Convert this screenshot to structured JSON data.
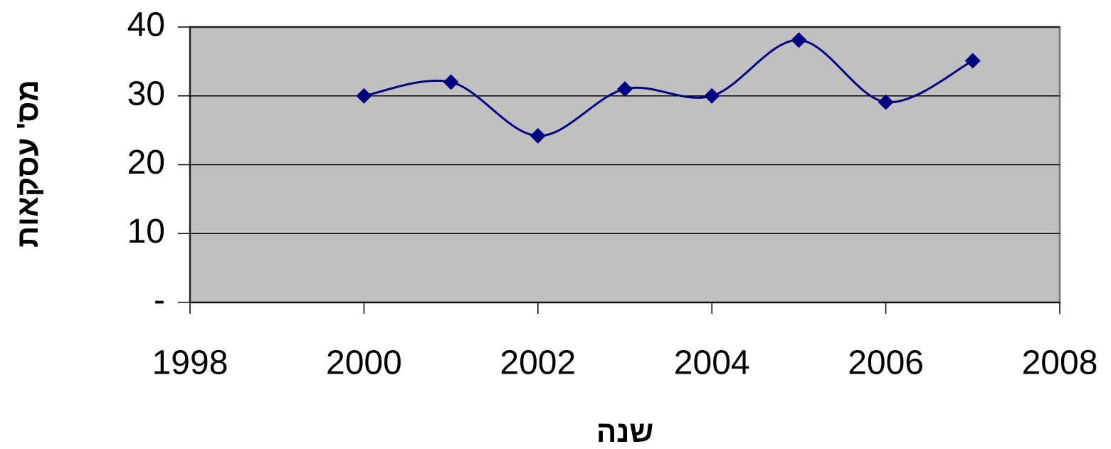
{
  "chart_data": {
    "type": "line",
    "x": [
      2000,
      2001,
      2002,
      2003,
      2004,
      2005,
      2006,
      2007
    ],
    "series": [
      {
        "name": "עסקאות",
        "color": "#000080",
        "values": [
          30,
          32,
          24.2,
          31,
          30,
          38.1,
          29.1,
          35.1
        ]
      }
    ],
    "xlim": [
      1998,
      2008
    ],
    "xticks": [
      1998,
      2000,
      2002,
      2004,
      2006,
      2008
    ],
    "ylim": [
      0,
      40
    ],
    "yticks": [
      {
        "value": 0,
        "label": "-"
      },
      10,
      20,
      30,
      40
    ],
    "xlabel": "שנה",
    "ylabel": "מס' עסקאות",
    "grid": true,
    "smooth": true,
    "plot_background": "#c0c0c0"
  }
}
